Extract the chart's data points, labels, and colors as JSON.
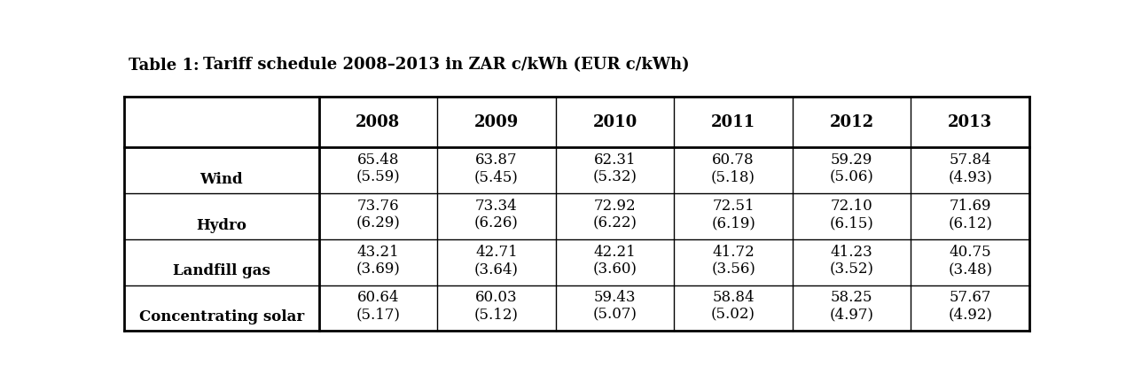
{
  "title_part1": "Table 1:",
  "title_part2": "Tariff schedule 2008–2013 in ZAR c/kWh (EUR c/kWh)",
  "columns": [
    "2008",
    "2009",
    "2010",
    "2011",
    "2012",
    "2013"
  ],
  "rows": [
    {
      "label": "Wind",
      "line1": [
        "65.48",
        "63.87",
        "62.31",
        "60.78",
        "59.29",
        "57.84"
      ],
      "line2": [
        "(5.59)",
        "(5.45)",
        "(5.32)",
        "(5.18)",
        "(5.06)",
        "(4.93)"
      ]
    },
    {
      "label": "Hydro",
      "line1": [
        "73.76",
        "73.34",
        "72.92",
        "72.51",
        "72.10",
        "71.69"
      ],
      "line2": [
        "(6.29)",
        "(6.26)",
        "(6.22)",
        "(6.19)",
        "(6.15)",
        "(6.12)"
      ]
    },
    {
      "label": "Landfill gas",
      "line1": [
        "43.21",
        "42.71",
        "42.21",
        "41.72",
        "41.23",
        "40.75"
      ],
      "line2": [
        "(3.69)",
        "(3.64)",
        "(3.60)",
        "(3.56)",
        "(3.52)",
        "(3.48)"
      ]
    },
    {
      "label": "Concentrating solar",
      "line1": [
        "60.64",
        "60.03",
        "59.43",
        "58.84",
        "58.25",
        "57.67"
      ],
      "line2": [
        "(5.17)",
        "(5.12)",
        "(5.07)",
        "(5.02)",
        "(4.97)",
        "(4.92)"
      ]
    }
  ],
  "title_fontsize": 13,
  "header_fontsize": 13,
  "cell_fontsize": 12,
  "label_fontsize": 12,
  "figwidth": 12.79,
  "figheight": 4.23,
  "dpi": 100
}
